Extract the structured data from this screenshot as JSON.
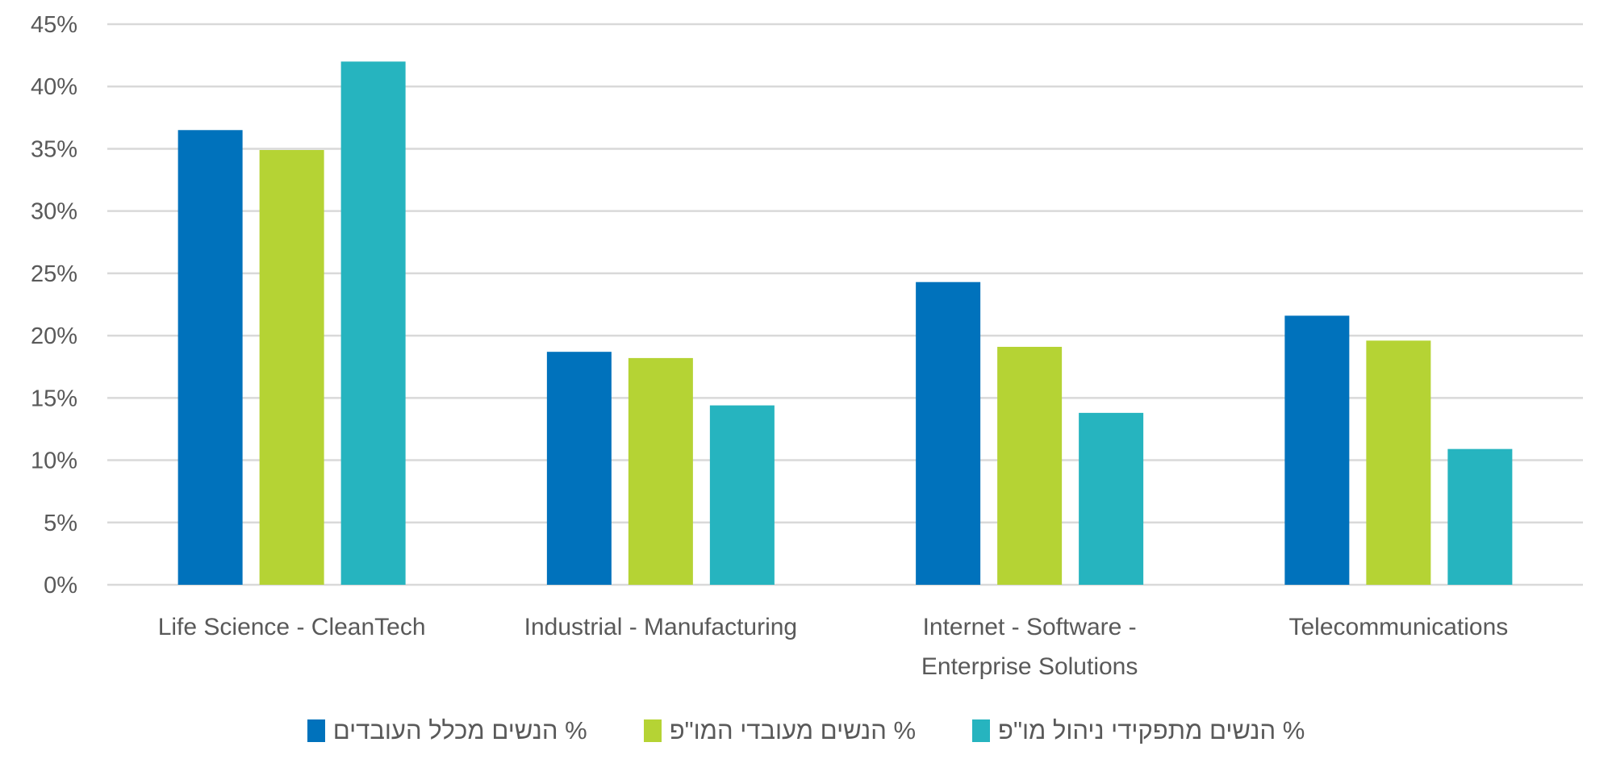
{
  "chart_data": {
    "type": "bar",
    "title": "",
    "xlabel": "",
    "ylabel": "",
    "ylim": [
      0,
      45
    ],
    "yticks": [
      "0%",
      "5%",
      "10%",
      "15%",
      "20%",
      "25%",
      "30%",
      "35%",
      "40%",
      "45%"
    ],
    "grid": true,
    "legend_position": "bottom",
    "categories": [
      [
        "Life Science -  CleanTech"
      ],
      [
        "Industrial - Manufacturing"
      ],
      [
        "Internet -  Software -",
        "Enterprise Solutions"
      ],
      [
        "Telecommunications"
      ]
    ],
    "series": [
      {
        "name": "% הנשים מכלל העובדים",
        "color": "#0072BC",
        "values": [
          36.5,
          18.7,
          24.3,
          21.6
        ]
      },
      {
        "name": "% הנשים מעובדי המו\"פ",
        "color": "#B5D334",
        "values": [
          34.9,
          18.2,
          19.1,
          19.6
        ]
      },
      {
        "name": "% הנשים מתפקידי ניהול מו\"פ",
        "color": "#26B4BF",
        "values": [
          42.0,
          14.4,
          13.8,
          10.9
        ]
      }
    ]
  }
}
